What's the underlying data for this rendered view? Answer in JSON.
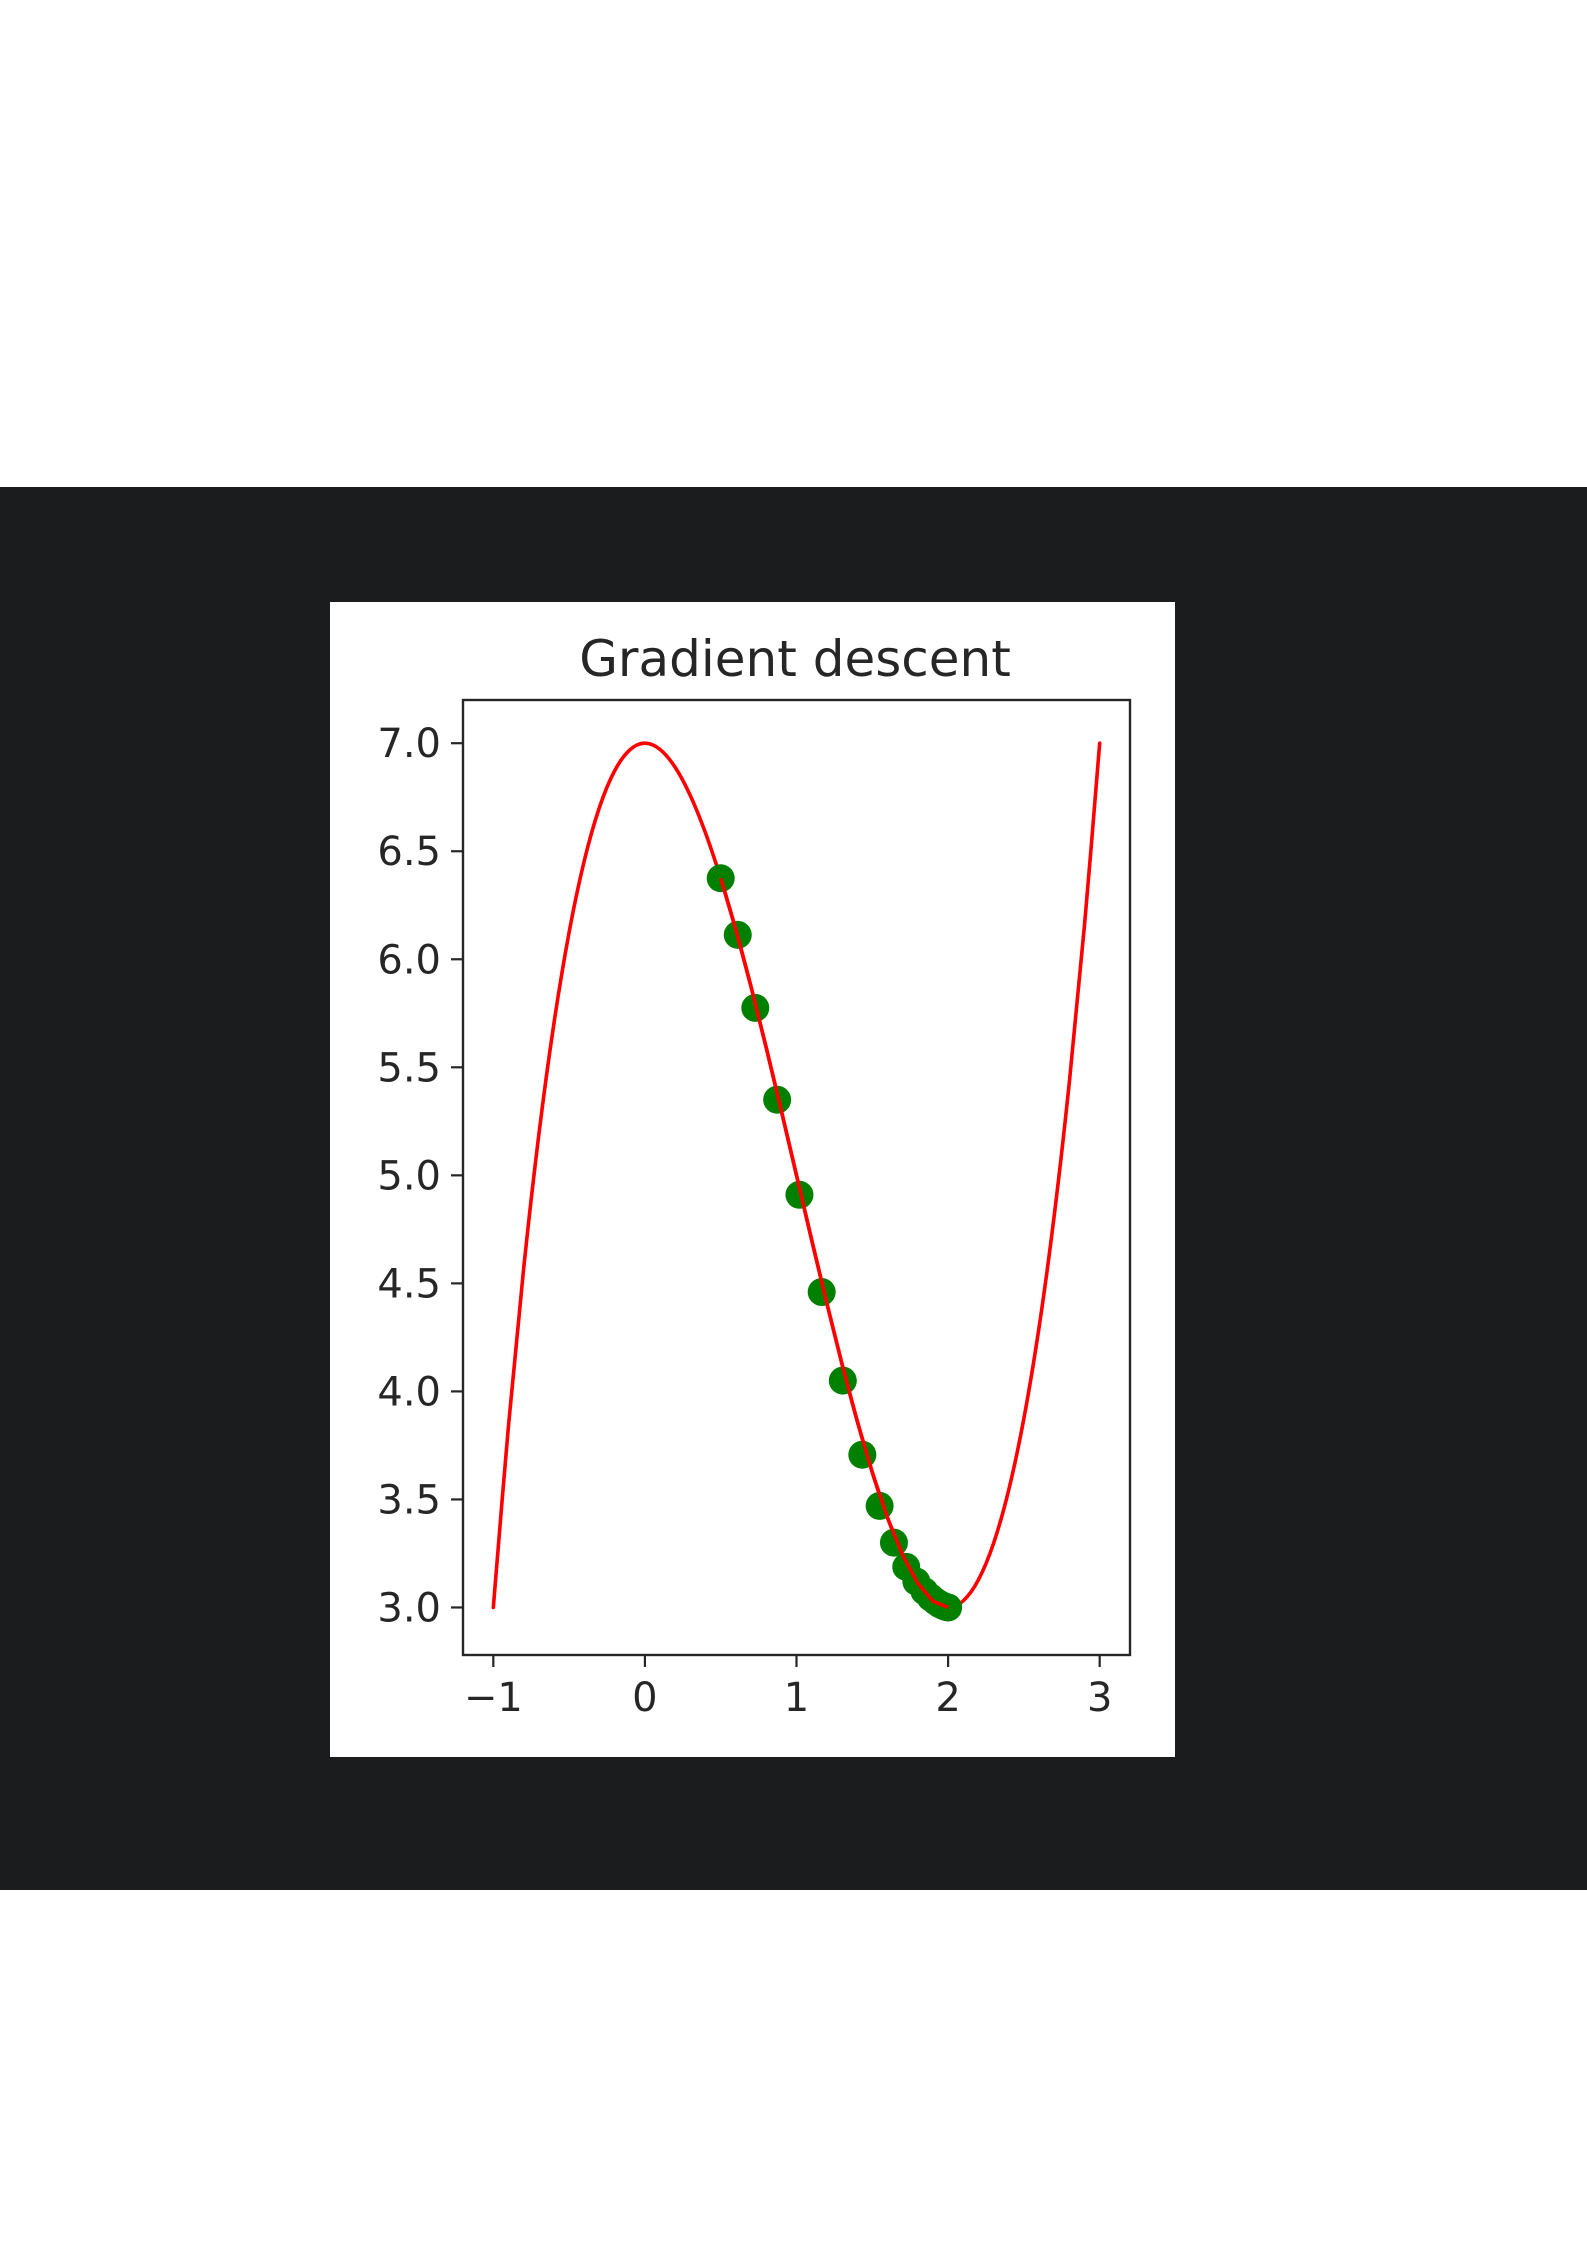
{
  "colors": {
    "background": "#ffffff",
    "band": "#1b1c1e",
    "panel": "#ffffff",
    "curve": "#ff0000",
    "points": "#008000",
    "axes": "#262626"
  },
  "chart_data": {
    "type": "line",
    "title": "Gradient descent",
    "xlabel": "",
    "ylabel": "",
    "xlim": [
      -1.2,
      3.2
    ],
    "ylim": [
      2.78,
      7.2
    ],
    "grid": false,
    "legend": "none",
    "x_ticks": [
      -1,
      0,
      1,
      2,
      3
    ],
    "x_tick_labels": [
      "−1",
      "0",
      "1",
      "2",
      "3"
    ],
    "y_ticks": [
      3.0,
      3.5,
      4.0,
      4.5,
      5.0,
      5.5,
      6.0,
      6.5,
      7.0
    ],
    "y_tick_labels": [
      "3.0",
      "3.5",
      "4.0",
      "4.5",
      "5.0",
      "5.5",
      "6.0",
      "6.5",
      "7.0"
    ],
    "series": [
      {
        "type": "line",
        "color": "#ff0000",
        "x": [
          -1.0,
          -0.9,
          -0.8,
          -0.7,
          -0.6,
          -0.5,
          -0.4,
          -0.3,
          -0.2,
          -0.1,
          0.0,
          0.1,
          0.2,
          0.3,
          0.4,
          0.5,
          0.6,
          0.7,
          0.8,
          0.9,
          1.0,
          1.1,
          1.2,
          1.3,
          1.4,
          1.5,
          1.6,
          1.7,
          1.8,
          1.9,
          2.0,
          2.1,
          2.2,
          2.3,
          2.4,
          2.5,
          2.6,
          2.7,
          2.8,
          2.9,
          3.0
        ],
        "y": [
          3.0,
          3.841,
          4.568,
          5.187,
          5.704,
          6.125,
          6.456,
          6.703,
          6.872,
          6.969,
          7.0,
          6.971,
          6.888,
          6.757,
          6.584,
          6.375,
          6.136,
          5.873,
          5.592,
          5.299,
          5.0,
          4.701,
          4.408,
          4.127,
          3.864,
          3.625,
          3.416,
          3.243,
          3.112,
          3.029,
          3.0,
          3.031,
          3.128,
          3.297,
          3.544,
          3.875,
          4.296,
          4.813,
          5.432,
          6.159,
          7.0
        ]
      },
      {
        "type": "scatter",
        "color": "#008000",
        "x": [
          0.5,
          0.6125,
          0.7281,
          0.8725,
          1.0194,
          1.1661,
          1.3054,
          1.4342,
          1.5483,
          1.6427,
          1.724,
          1.7906,
          1.8441,
          1.8865,
          1.9197,
          1.9453,
          1.9649,
          1.9798,
          1.991,
          2.0
        ],
        "y": [
          6.375,
          6.113,
          5.775,
          5.35,
          4.91,
          4.46,
          4.05,
          3.707,
          3.47,
          3.3,
          3.188,
          3.12,
          3.075,
          3.045,
          3.027,
          3.015,
          3.008,
          3.004,
          3.001,
          3.0
        ]
      }
    ]
  }
}
